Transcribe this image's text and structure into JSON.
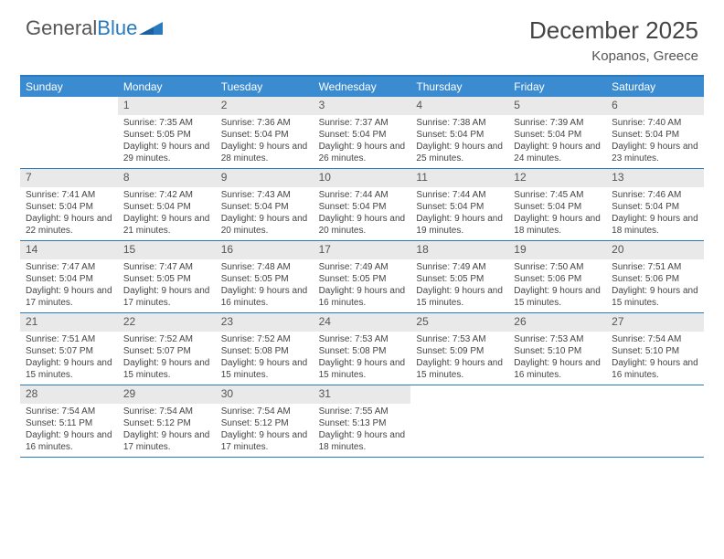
{
  "logo": {
    "text1": "General",
    "text2": "Blue"
  },
  "title": "December 2025",
  "location": "Kopanos, Greece",
  "colors": {
    "header_bg": "#3b8bd0",
    "border": "#2a7ac0",
    "daynum_bg": "#e9e9e9",
    "text": "#444444"
  },
  "day_labels": [
    "Sunday",
    "Monday",
    "Tuesday",
    "Wednesday",
    "Thursday",
    "Friday",
    "Saturday"
  ],
  "weeks": [
    [
      {
        "num": "",
        "sunrise": "",
        "sunset": "",
        "daylight": ""
      },
      {
        "num": "1",
        "sunrise": "Sunrise: 7:35 AM",
        "sunset": "Sunset: 5:05 PM",
        "daylight": "Daylight: 9 hours and 29 minutes."
      },
      {
        "num": "2",
        "sunrise": "Sunrise: 7:36 AM",
        "sunset": "Sunset: 5:04 PM",
        "daylight": "Daylight: 9 hours and 28 minutes."
      },
      {
        "num": "3",
        "sunrise": "Sunrise: 7:37 AM",
        "sunset": "Sunset: 5:04 PM",
        "daylight": "Daylight: 9 hours and 26 minutes."
      },
      {
        "num": "4",
        "sunrise": "Sunrise: 7:38 AM",
        "sunset": "Sunset: 5:04 PM",
        "daylight": "Daylight: 9 hours and 25 minutes."
      },
      {
        "num": "5",
        "sunrise": "Sunrise: 7:39 AM",
        "sunset": "Sunset: 5:04 PM",
        "daylight": "Daylight: 9 hours and 24 minutes."
      },
      {
        "num": "6",
        "sunrise": "Sunrise: 7:40 AM",
        "sunset": "Sunset: 5:04 PM",
        "daylight": "Daylight: 9 hours and 23 minutes."
      }
    ],
    [
      {
        "num": "7",
        "sunrise": "Sunrise: 7:41 AM",
        "sunset": "Sunset: 5:04 PM",
        "daylight": "Daylight: 9 hours and 22 minutes."
      },
      {
        "num": "8",
        "sunrise": "Sunrise: 7:42 AM",
        "sunset": "Sunset: 5:04 PM",
        "daylight": "Daylight: 9 hours and 21 minutes."
      },
      {
        "num": "9",
        "sunrise": "Sunrise: 7:43 AM",
        "sunset": "Sunset: 5:04 PM",
        "daylight": "Daylight: 9 hours and 20 minutes."
      },
      {
        "num": "10",
        "sunrise": "Sunrise: 7:44 AM",
        "sunset": "Sunset: 5:04 PM",
        "daylight": "Daylight: 9 hours and 20 minutes."
      },
      {
        "num": "11",
        "sunrise": "Sunrise: 7:44 AM",
        "sunset": "Sunset: 5:04 PM",
        "daylight": "Daylight: 9 hours and 19 minutes."
      },
      {
        "num": "12",
        "sunrise": "Sunrise: 7:45 AM",
        "sunset": "Sunset: 5:04 PM",
        "daylight": "Daylight: 9 hours and 18 minutes."
      },
      {
        "num": "13",
        "sunrise": "Sunrise: 7:46 AM",
        "sunset": "Sunset: 5:04 PM",
        "daylight": "Daylight: 9 hours and 18 minutes."
      }
    ],
    [
      {
        "num": "14",
        "sunrise": "Sunrise: 7:47 AM",
        "sunset": "Sunset: 5:04 PM",
        "daylight": "Daylight: 9 hours and 17 minutes."
      },
      {
        "num": "15",
        "sunrise": "Sunrise: 7:47 AM",
        "sunset": "Sunset: 5:05 PM",
        "daylight": "Daylight: 9 hours and 17 minutes."
      },
      {
        "num": "16",
        "sunrise": "Sunrise: 7:48 AM",
        "sunset": "Sunset: 5:05 PM",
        "daylight": "Daylight: 9 hours and 16 minutes."
      },
      {
        "num": "17",
        "sunrise": "Sunrise: 7:49 AM",
        "sunset": "Sunset: 5:05 PM",
        "daylight": "Daylight: 9 hours and 16 minutes."
      },
      {
        "num": "18",
        "sunrise": "Sunrise: 7:49 AM",
        "sunset": "Sunset: 5:05 PM",
        "daylight": "Daylight: 9 hours and 15 minutes."
      },
      {
        "num": "19",
        "sunrise": "Sunrise: 7:50 AM",
        "sunset": "Sunset: 5:06 PM",
        "daylight": "Daylight: 9 hours and 15 minutes."
      },
      {
        "num": "20",
        "sunrise": "Sunrise: 7:51 AM",
        "sunset": "Sunset: 5:06 PM",
        "daylight": "Daylight: 9 hours and 15 minutes."
      }
    ],
    [
      {
        "num": "21",
        "sunrise": "Sunrise: 7:51 AM",
        "sunset": "Sunset: 5:07 PM",
        "daylight": "Daylight: 9 hours and 15 minutes."
      },
      {
        "num": "22",
        "sunrise": "Sunrise: 7:52 AM",
        "sunset": "Sunset: 5:07 PM",
        "daylight": "Daylight: 9 hours and 15 minutes."
      },
      {
        "num": "23",
        "sunrise": "Sunrise: 7:52 AM",
        "sunset": "Sunset: 5:08 PM",
        "daylight": "Daylight: 9 hours and 15 minutes."
      },
      {
        "num": "24",
        "sunrise": "Sunrise: 7:53 AM",
        "sunset": "Sunset: 5:08 PM",
        "daylight": "Daylight: 9 hours and 15 minutes."
      },
      {
        "num": "25",
        "sunrise": "Sunrise: 7:53 AM",
        "sunset": "Sunset: 5:09 PM",
        "daylight": "Daylight: 9 hours and 15 minutes."
      },
      {
        "num": "26",
        "sunrise": "Sunrise: 7:53 AM",
        "sunset": "Sunset: 5:10 PM",
        "daylight": "Daylight: 9 hours and 16 minutes."
      },
      {
        "num": "27",
        "sunrise": "Sunrise: 7:54 AM",
        "sunset": "Sunset: 5:10 PM",
        "daylight": "Daylight: 9 hours and 16 minutes."
      }
    ],
    [
      {
        "num": "28",
        "sunrise": "Sunrise: 7:54 AM",
        "sunset": "Sunset: 5:11 PM",
        "daylight": "Daylight: 9 hours and 16 minutes."
      },
      {
        "num": "29",
        "sunrise": "Sunrise: 7:54 AM",
        "sunset": "Sunset: 5:12 PM",
        "daylight": "Daylight: 9 hours and 17 minutes."
      },
      {
        "num": "30",
        "sunrise": "Sunrise: 7:54 AM",
        "sunset": "Sunset: 5:12 PM",
        "daylight": "Daylight: 9 hours and 17 minutes."
      },
      {
        "num": "31",
        "sunrise": "Sunrise: 7:55 AM",
        "sunset": "Sunset: 5:13 PM",
        "daylight": "Daylight: 9 hours and 18 minutes."
      },
      {
        "num": "",
        "sunrise": "",
        "sunset": "",
        "daylight": ""
      },
      {
        "num": "",
        "sunrise": "",
        "sunset": "",
        "daylight": ""
      },
      {
        "num": "",
        "sunrise": "",
        "sunset": "",
        "daylight": ""
      }
    ]
  ]
}
